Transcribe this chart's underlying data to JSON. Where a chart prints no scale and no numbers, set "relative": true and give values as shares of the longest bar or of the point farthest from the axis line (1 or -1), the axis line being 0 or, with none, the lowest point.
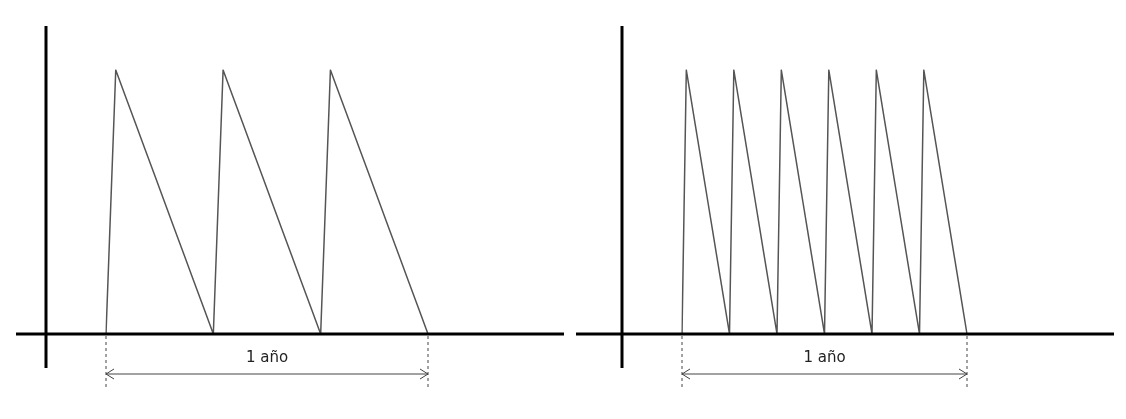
{
  "chart_data": [
    {
      "type": "line",
      "relative": true,
      "legend": false,
      "marker": "none",
      "annotations": [
        "1 año"
      ],
      "categories": [
        null,
        null,
        null,
        null,
        null,
        null,
        null,
        null,
        null,
        null,
        null,
        null,
        null,
        null,
        null,
        null,
        null,
        null,
        null,
        null,
        null,
        null,
        null,
        null,
        null,
        null,
        null,
        null,
        null,
        null,
        null,
        null,
        null,
        null
      ],
      "series": [
        {
          "color": "#555555",
          "values": [
            0,
            1,
            0.9,
            0.8,
            0.7,
            0.6,
            0.5,
            0.4,
            0.3,
            0.2,
            0.1,
            0,
            1,
            0.9,
            0.8,
            0.7,
            0.6,
            0.5,
            0.4,
            0.3,
            0.2,
            0.1,
            0,
            1,
            0.9,
            0.8,
            0.7,
            0.6,
            0.5,
            0.4,
            0.3,
            0.2,
            0.1,
            0
          ]
        }
      ]
    },
    {
      "type": "line",
      "relative": true,
      "legend": false,
      "marker": "none",
      "annotations": [
        "1 año"
      ],
      "categories": [
        null,
        null,
        null,
        null,
        null,
        null,
        null,
        null,
        null,
        null,
        null,
        null,
        null,
        null,
        null,
        null,
        null,
        null,
        null,
        null,
        null,
        null,
        null,
        null,
        null,
        null,
        null,
        null,
        null,
        null,
        null,
        null,
        null,
        null,
        null,
        null,
        null,
        null,
        null,
        null,
        null,
        null,
        null,
        null,
        null,
        null,
        null,
        null,
        null,
        null,
        null,
        null,
        null,
        null,
        null,
        null,
        null,
        null,
        null,
        null,
        null,
        null,
        null,
        null,
        null,
        null,
        null
      ],
      "series": [
        {
          "color": "#555555",
          "values": [
            0,
            1,
            0.9,
            0.8,
            0.7,
            0.6,
            0.5,
            0.4,
            0.3,
            0.2,
            0.1,
            0,
            1,
            0.9,
            0.8,
            0.7,
            0.6,
            0.5,
            0.4,
            0.3,
            0.2,
            0.1,
            0,
            1,
            0.9,
            0.8,
            0.7,
            0.6,
            0.5,
            0.4,
            0.3,
            0.2,
            0.1,
            0,
            1,
            0.9,
            0.8,
            0.7,
            0.6,
            0.5,
            0.4,
            0.3,
            0.2,
            0.1,
            0,
            1,
            0.9,
            0.8,
            0.7,
            0.6,
            0.5,
            0.4,
            0.3,
            0.2,
            0.1,
            0,
            1,
            0.9,
            0.8,
            0.7,
            0.6,
            0.5,
            0.4,
            0.3,
            0.2,
            0.1,
            0
          ]
        }
      ]
    }
  ]
}
